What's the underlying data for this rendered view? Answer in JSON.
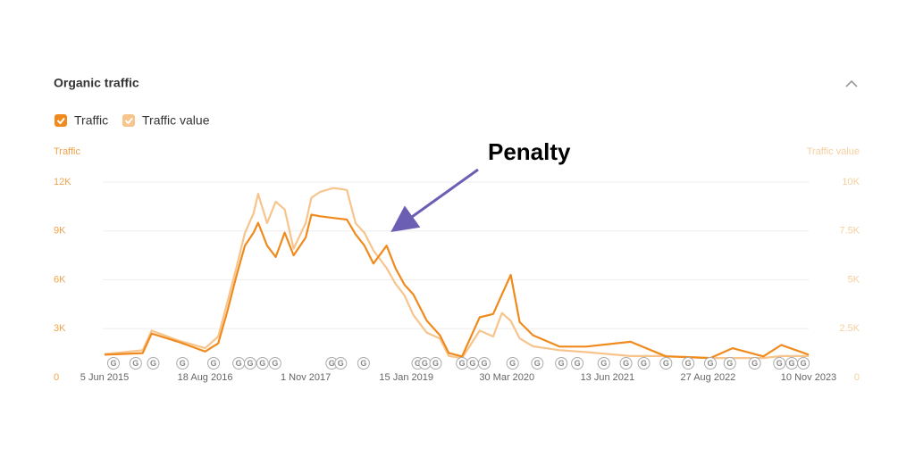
{
  "chart_data": {
    "type": "line",
    "title": "Organic traffic",
    "legend": [
      "Traffic",
      "Traffic value"
    ],
    "y_label": "Traffic",
    "y2_label": "Traffic value",
    "annotation": "Penalty",
    "x": [
      "2015-06-05",
      "2015-11-19",
      "2015-12-28",
      "2016-04-22",
      "2016-08-18",
      "2016-10-14",
      "2016-11-22",
      "2017-01-01",
      "2017-02-08",
      "2017-03-18",
      "2017-04-07",
      "2017-05-16",
      "2017-06-23",
      "2017-08-01",
      "2017-09-09",
      "2017-11-01",
      "2017-11-26",
      "2018-01-03",
      "2018-03-02",
      "2018-04-30",
      "2018-06-07",
      "2018-07-16",
      "2018-08-24",
      "2018-10-21",
      "2018-11-29",
      "2019-01-07",
      "2019-02-15",
      "2019-04-14",
      "2019-06-11",
      "2019-07-20",
      "2019-09-16",
      "2019-12-02",
      "2020-01-30",
      "2020-03-08",
      "2020-04-16",
      "2020-05-25",
      "2020-07-22",
      "2020-11-15",
      "2021-03-12",
      "2021-09-22",
      "2022-02-24",
      "2022-09-06",
      "2022-12-12",
      "2023-04-26",
      "2023-07-13",
      "2023-11-10"
    ],
    "series": [
      {
        "name": "Traffic",
        "color": "#f08a1d",
        "axis": "y",
        "values": [
          1400,
          1500,
          2700,
          2200,
          1600,
          2100,
          4000,
          6200,
          8100,
          8900,
          9500,
          8100,
          7400,
          8900,
          7500,
          8600,
          10000,
          9900,
          9800,
          9700,
          8800,
          8100,
          7000,
          8100,
          6700,
          5700,
          5100,
          3500,
          2600,
          1500,
          1300,
          3700,
          3900,
          5100,
          6300,
          3400,
          2600,
          1900,
          1900,
          2200,
          1300,
          1200,
          1800,
          1300,
          2000,
          1400
        ]
      },
      {
        "name": "Traffic value",
        "color": "#f7c48c",
        "axis": "y2",
        "values": [
          1200,
          1400,
          2400,
          1900,
          1500,
          2100,
          3800,
          5600,
          7400,
          8400,
          9400,
          7900,
          9000,
          8600,
          6600,
          7900,
          9200,
          9500,
          9700,
          9600,
          7900,
          7400,
          6500,
          5600,
          4800,
          4200,
          3200,
          2300,
          2000,
          1100,
          1000,
          2400,
          2100,
          3300,
          2900,
          2000,
          1600,
          1400,
          1300,
          1100,
          1100,
          1000,
          1000,
          1000,
          1100,
          1100
        ]
      }
    ],
    "xlim": [
      "2015-06-05",
      "2023-11-10"
    ],
    "xticks": [
      {
        "value": "2015-06-05",
        "label": "5 Jun 2015"
      },
      {
        "value": "2016-08-18",
        "label": "18 Aug 2016"
      },
      {
        "value": "2017-11-01",
        "label": "1 Nov 2017"
      },
      {
        "value": "2019-01-15",
        "label": "15 Jan 2019"
      },
      {
        "value": "2020-03-30",
        "label": "30 Mar 2020"
      },
      {
        "value": "2021-06-13",
        "label": "13 Jun 2021"
      },
      {
        "value": "2022-08-27",
        "label": "27 Aug 2022"
      },
      {
        "value": "2023-11-10",
        "label": "10 Nov 2023"
      }
    ],
    "ylim": [
      0,
      12000
    ],
    "yticks": [
      0,
      {
        "value": 3000,
        "label": "3K"
      },
      {
        "value": 6000,
        "label": "6K"
      },
      {
        "value": 9000,
        "label": "9K"
      },
      {
        "value": 12000,
        "label": "12K"
      }
    ],
    "y2lim": [
      0,
      10000
    ],
    "y2ticks": [
      0,
      {
        "value": 2500,
        "label": "2.5K"
      },
      {
        "value": 5000,
        "label": "5K"
      },
      {
        "value": 7500,
        "label": "7.5K"
      },
      {
        "value": 10000,
        "label": "10K"
      }
    ],
    "grid": true,
    "update_markers": {
      "label": "G",
      "dates": [
        "2015-07-14",
        "2015-10-19",
        "2016-01-04",
        "2016-05-11",
        "2016-09-24",
        "2017-01-12",
        "2017-03-03",
        "2017-04-26",
        "2017-06-20",
        "2018-02-23",
        "2018-04-03",
        "2018-07-12",
        "2019-03-06",
        "2019-04-06",
        "2019-05-23",
        "2019-09-16",
        "2019-11-01",
        "2019-12-22",
        "2020-04-24",
        "2020-08-10",
        "2020-11-23",
        "2021-02-01",
        "2021-05-28",
        "2021-09-02",
        "2021-11-19",
        "2022-02-24",
        "2022-06-01",
        "2022-09-06",
        "2022-11-30",
        "2023-03-19",
        "2023-07-05",
        "2023-08-28",
        "2023-10-18"
      ]
    }
  }
}
